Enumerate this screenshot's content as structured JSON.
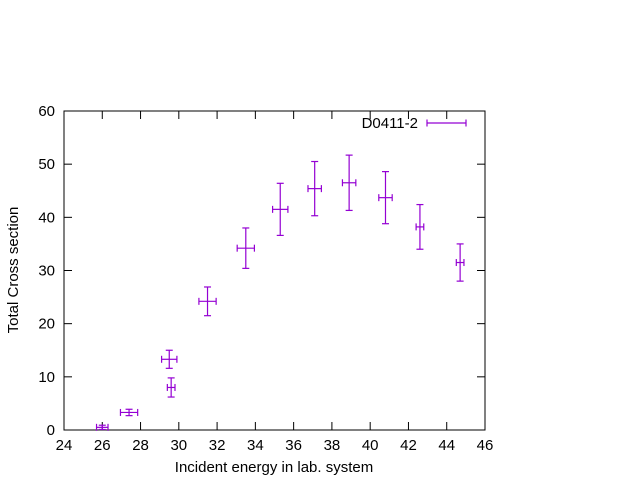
{
  "chart_data": {
    "type": "scatter",
    "title": "",
    "xlabel": "Incident energy in lab. system",
    "ylabel": "Total Cross section",
    "xlim": [
      24,
      46
    ],
    "ylim": [
      0,
      60
    ],
    "xticks": [
      24,
      26,
      28,
      30,
      32,
      34,
      36,
      38,
      40,
      42,
      44,
      46
    ],
    "yticks": [
      0,
      10,
      20,
      30,
      40,
      50,
      60
    ],
    "grid": false,
    "legend_position": "top-right",
    "series": [
      {
        "name": "D0411-2",
        "color": "#9400d3",
        "points": [
          {
            "x": 26.0,
            "y": 0.5,
            "xerr": 0.3,
            "yerr": 0.4
          },
          {
            "x": 27.4,
            "y": 3.3,
            "xerr": 0.45,
            "yerr": 0.6
          },
          {
            "x": 29.5,
            "y": 13.3,
            "xerr": 0.4,
            "yerr": 1.7
          },
          {
            "x": 29.6,
            "y": 8.0,
            "xerr": 0.2,
            "yerr": 1.8
          },
          {
            "x": 31.5,
            "y": 24.2,
            "xerr": 0.45,
            "yerr": 2.7
          },
          {
            "x": 33.5,
            "y": 34.2,
            "xerr": 0.45,
            "yerr": 3.8
          },
          {
            "x": 35.3,
            "y": 41.5,
            "xerr": 0.4,
            "yerr": 4.9
          },
          {
            "x": 37.1,
            "y": 45.4,
            "xerr": 0.35,
            "yerr": 5.1
          },
          {
            "x": 38.9,
            "y": 46.5,
            "xerr": 0.35,
            "yerr": 5.2
          },
          {
            "x": 40.8,
            "y": 43.7,
            "xerr": 0.35,
            "yerr": 4.9
          },
          {
            "x": 42.6,
            "y": 38.2,
            "xerr": 0.2,
            "yerr": 4.2
          },
          {
            "x": 44.7,
            "y": 31.5,
            "xerr": 0.2,
            "yerr": 3.5
          }
        ]
      }
    ]
  }
}
